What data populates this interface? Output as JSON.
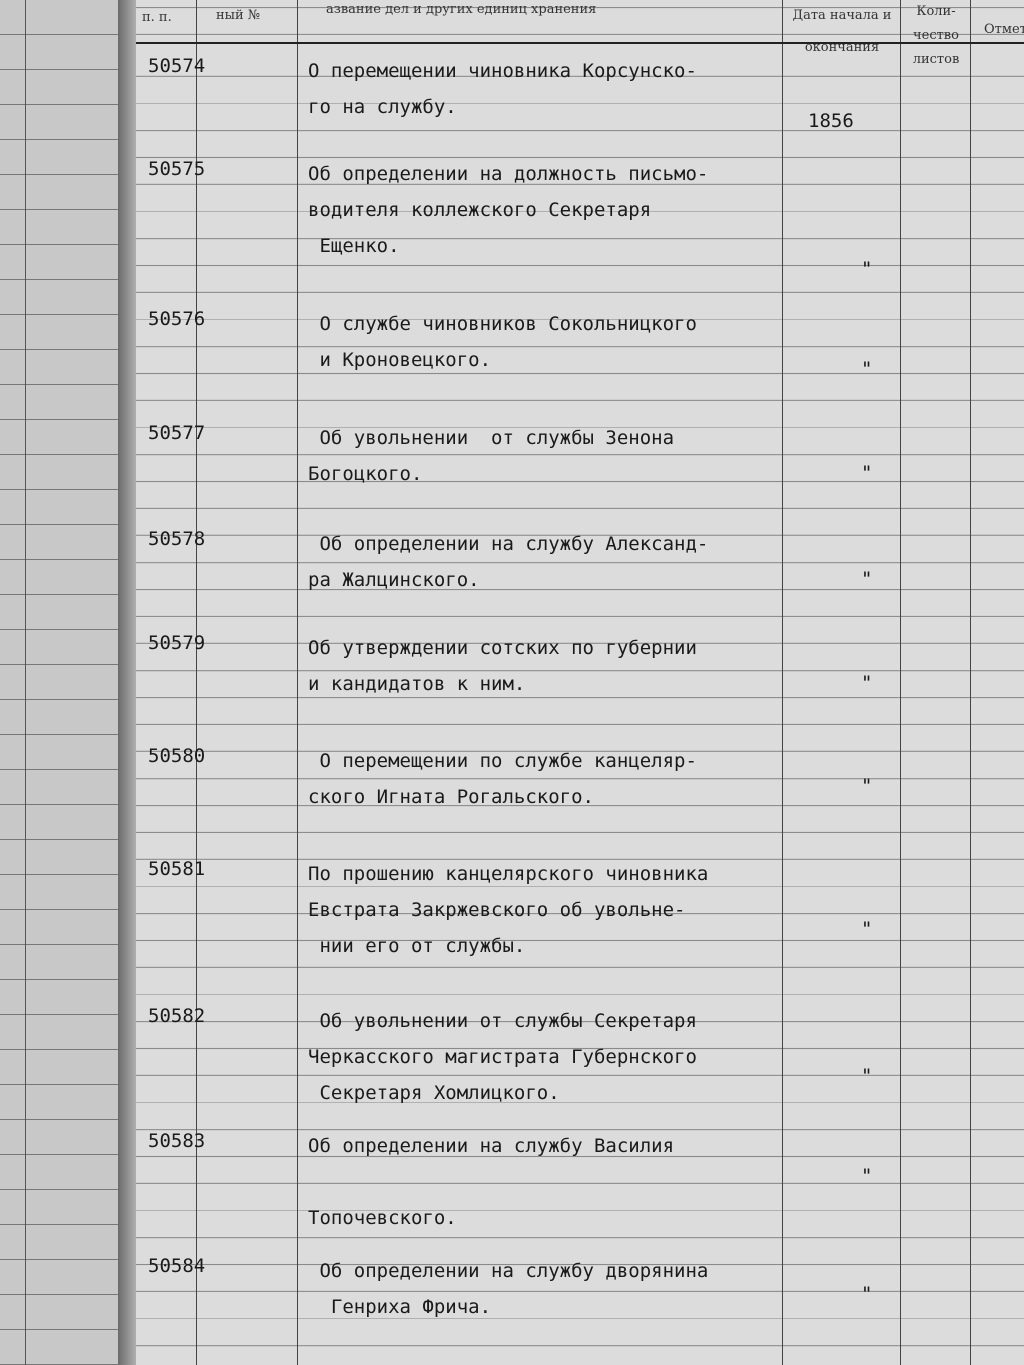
{
  "header": {
    "col_num": "п. п.",
    "col_inv": "ный №",
    "col_title": "азвание дел и других единиц хранения",
    "col_date": "Дата начала и окончания",
    "col_count": "Коли- чество листов",
    "col_notes": "Отмет"
  },
  "rows": [
    {
      "num": "50574",
      "title": "О перемещении чиновника Корсунско-\nго на службу.",
      "date": "1856"
    },
    {
      "num": "50575",
      "title": "Об определении на должность письмо-\nводителя коллежского Секретаря\n Ещенко.",
      "date": "\""
    },
    {
      "num": "50576",
      "title": " О службе чиновников Сокольницкого\n и Кроновецкого.",
      "date": "\""
    },
    {
      "num": "50577",
      "title": " Об увольнении  от службы Зенона\nБогоцкого.",
      "date": "\""
    },
    {
      "num": "50578",
      "title": " Об определении на службу Александ-\nра Жалцинского.",
      "date": "\""
    },
    {
      "num": "50579",
      "title": "Об утверждении сотских по губернии\nи кандидатов к ним.",
      "date": "\""
    },
    {
      "num": "50580",
      "title": " О перемещении по службе канцеляр-\nского Игната Рогальского.",
      "date": "\""
    },
    {
      "num": "50581",
      "title": "По прошению канцелярского чиновника\nЕвстрата Закржевского об увольне-\n нии его от службы.",
      "date": "\""
    },
    {
      "num": "50582",
      "title": " Об увольнении от службы Секретаря\nЧеркасского магистрата Губернского\n Секретаря Хомлицкого.",
      "date": "\""
    },
    {
      "num": "50583",
      "title": "Об определении на службу Василия\n\nТопочевского.",
      "date": "\""
    },
    {
      "num": "50584",
      "title": " Об определении на службу дворянина\n  Генриха Фрича.",
      "date": "\""
    }
  ]
}
